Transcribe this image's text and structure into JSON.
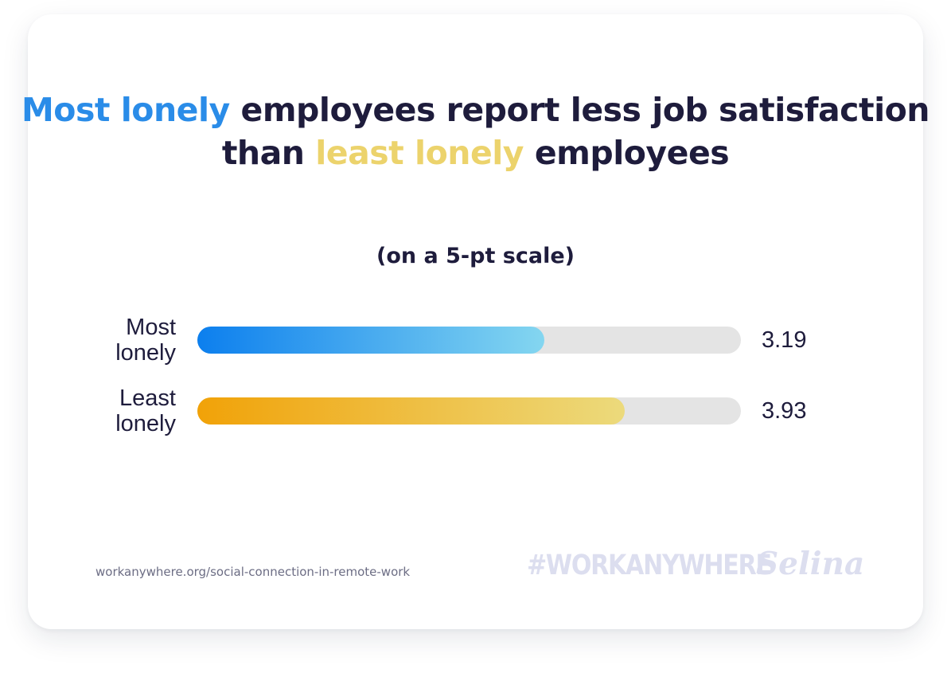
{
  "chart_data": {
    "type": "bar",
    "orientation": "horizontal",
    "title_parts": [
      {
        "text": "Most lonely",
        "style": "blue"
      },
      {
        "text": " employees report less job satisfaction than ",
        "style": "dark"
      },
      {
        "text": "least lonely",
        "style": "yellow"
      },
      {
        "text": " employees",
        "style": "dark"
      }
    ],
    "subtitle": "(on a 5-pt scale)",
    "categories": [
      "Most\nlonely",
      "Least\nlonely"
    ],
    "values": [
      3.19,
      3.93
    ],
    "value_labels": [
      "3.19",
      "3.93"
    ],
    "xlim": [
      0,
      5
    ],
    "grid": false,
    "legend": "none",
    "colors": {
      "most_lonely_gradient": [
        "#0c7fee",
        "#84d6f0"
      ],
      "least_lonely_gradient": [
        "#f1a208",
        "#ecda7c"
      ],
      "track": "#e4e4e4",
      "title_blue": "#2a8ce8",
      "title_yellow": "#ecd36c",
      "text_dark": "#1e1c3c"
    }
  },
  "footer": {
    "source": "workanywhere.org/social-connection-in-remote-work",
    "hashtag": "#WORKANYWHERE",
    "brand": "Selina"
  }
}
